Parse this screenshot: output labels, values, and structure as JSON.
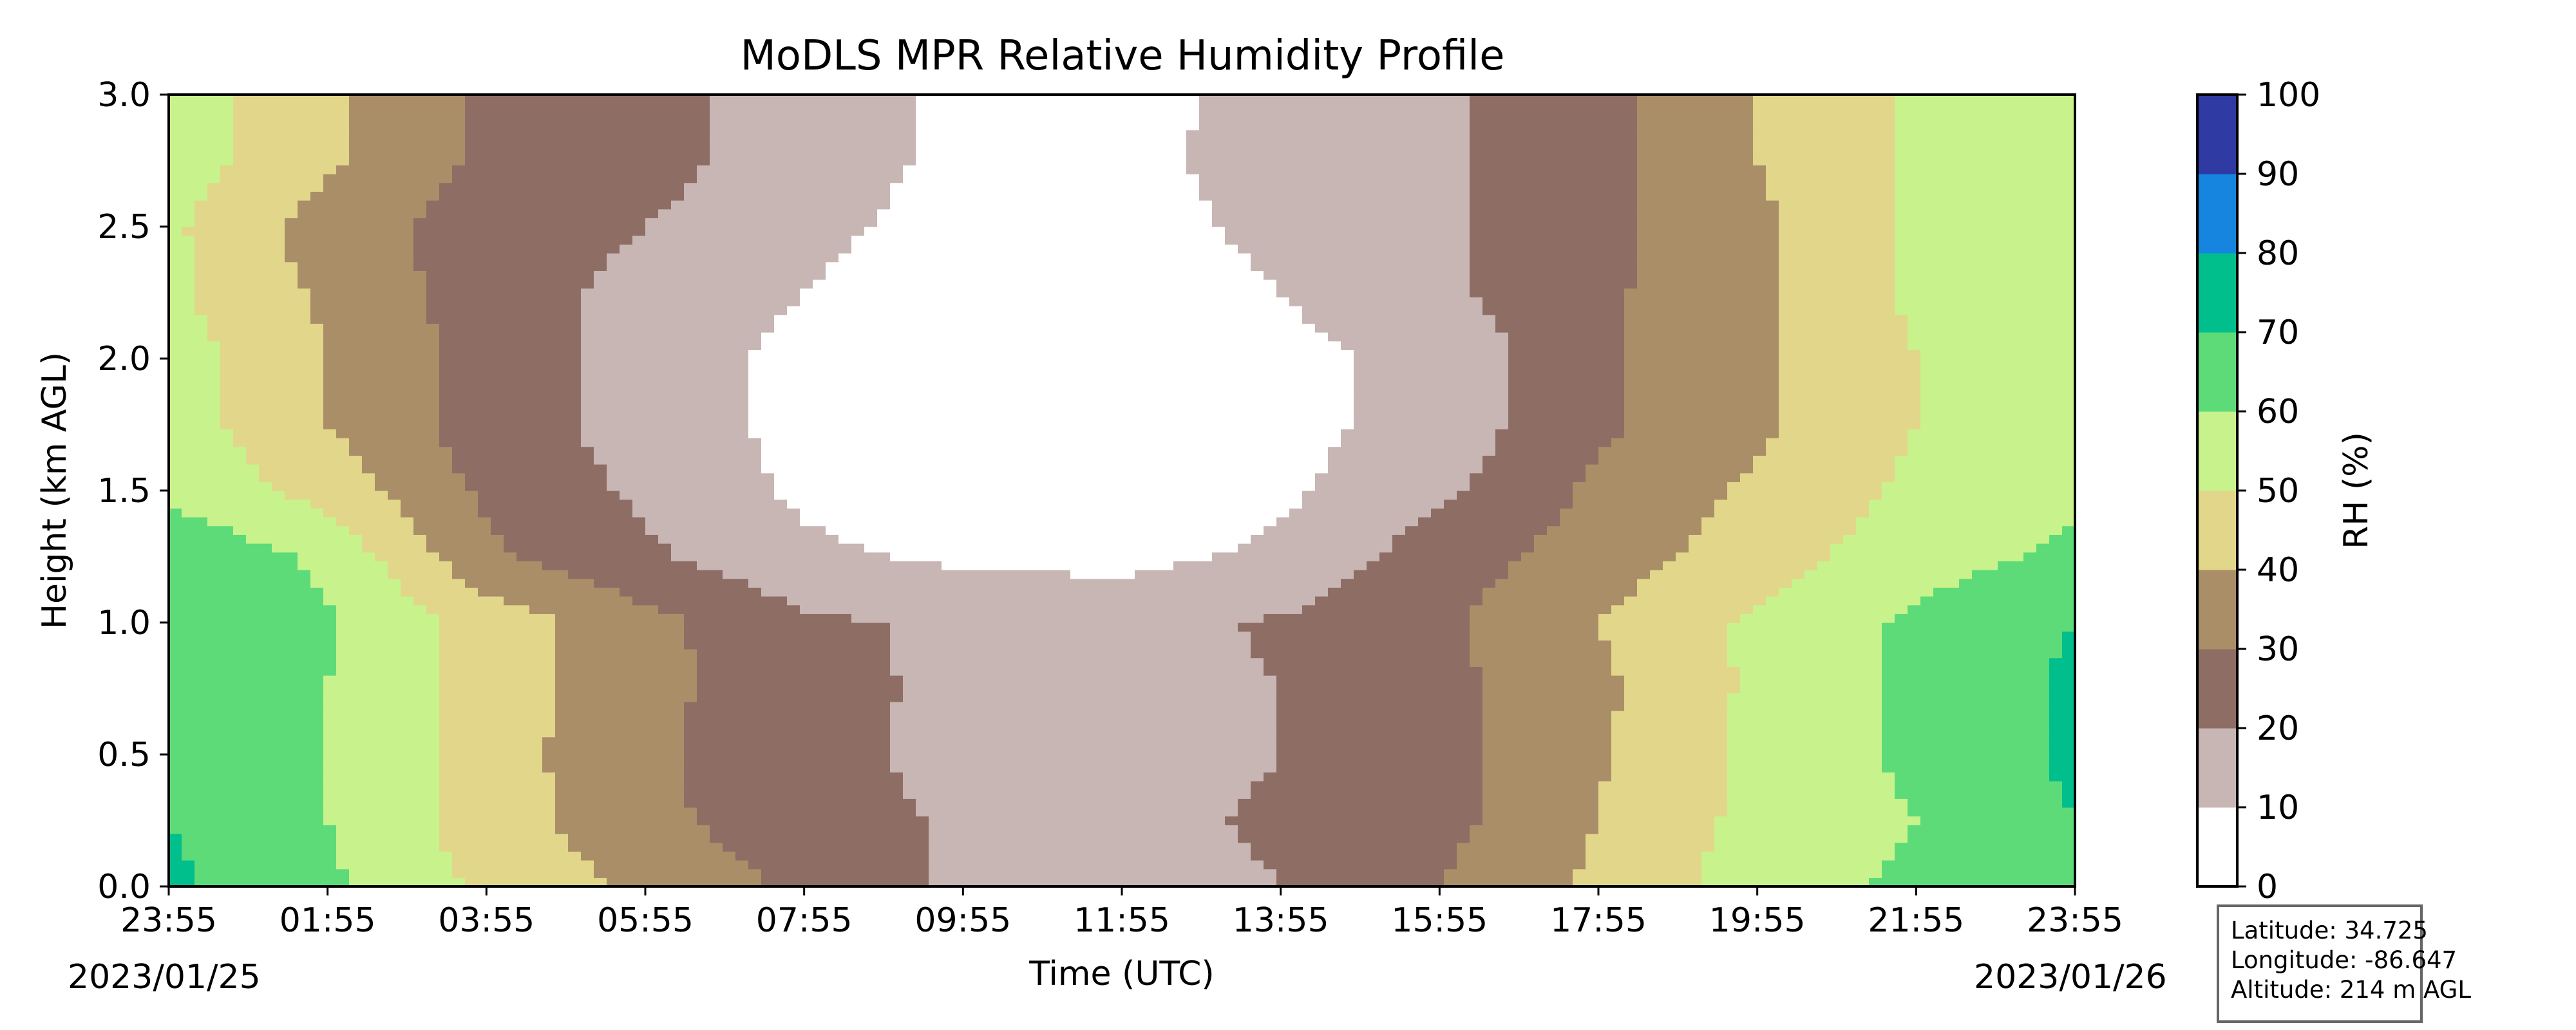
{
  "chart_data": {
    "type": "heatmap",
    "title": "MoDLS MPR Relative Humidity Profile",
    "xlabel": "Time (UTC)",
    "ylabel": "Height (km AGL)",
    "x_ticks": [
      "23:55",
      "01:55",
      "03:55",
      "05:55",
      "07:55",
      "09:55",
      "11:55",
      "13:55",
      "15:55",
      "17:55",
      "19:55",
      "21:55",
      "23:55"
    ],
    "start_date": "2023/01/25",
    "end_date": "2023/01/26",
    "ylim": [
      0.0,
      3.0
    ],
    "y_ticks": [
      "0.0",
      "0.5",
      "1.0",
      "1.5",
      "2.0",
      "2.5",
      "3.0"
    ],
    "colorbar": {
      "label": "RH (%)",
      "ticks": [
        "0",
        "10",
        "20",
        "30",
        "40",
        "50",
        "60",
        "70",
        "80",
        "90",
        "100"
      ],
      "levels": [
        0,
        10,
        20,
        30,
        40,
        50,
        60,
        70,
        80,
        90,
        100
      ],
      "colors": [
        "#ffffff",
        "#c8b6b4",
        "#8e6e64",
        "#a98e68",
        "#e1d68a",
        "#c8f28c",
        "#5cdb78",
        "#00bf8c",
        "#1585e0",
        "#2f3aa3"
      ]
    },
    "profile_heights_km": [
      0.0,
      0.25,
      0.5,
      0.75,
      1.0,
      1.25,
      1.5,
      1.75,
      2.0,
      2.25,
      2.5,
      2.75,
      3.0
    ],
    "profile_times": [
      "23:55",
      "01:55",
      "03:55",
      "05:55",
      "07:55",
      "09:55",
      "11:55",
      "13:55",
      "15:55",
      "17:55",
      "19:55",
      "21:55",
      "23:55"
    ],
    "rh_grid": [
      [
        72,
        62,
        48,
        38,
        28,
        18,
        17,
        20,
        30,
        42,
        55,
        62,
        70
      ],
      [
        70,
        60,
        45,
        33,
        23,
        19,
        18,
        21,
        27,
        40,
        53,
        60,
        70
      ],
      [
        70,
        60,
        45,
        32,
        22,
        18,
        17,
        20,
        27,
        39,
        53,
        62,
        72
      ],
      [
        70,
        60,
        45,
        33,
        23,
        18,
        17,
        20,
        27,
        38,
        52,
        62,
        72
      ],
      [
        70,
        61,
        46,
        33,
        22,
        18,
        17,
        21,
        28,
        40,
        52,
        62,
        70
      ],
      [
        68,
        58,
        32,
        22,
        12,
        8,
        7,
        12,
        25,
        35,
        45,
        56,
        62
      ],
      [
        58,
        46,
        28,
        18,
        8,
        5,
        5,
        8,
        18,
        32,
        42,
        52,
        58
      ],
      [
        55,
        40,
        25,
        16,
        7,
        4,
        4,
        7,
        14,
        28,
        38,
        50,
        58
      ],
      [
        55,
        40,
        26,
        16,
        7,
        4,
        4,
        7,
        13,
        28,
        38,
        50,
        58
      ],
      [
        52,
        38,
        25,
        17,
        10,
        5,
        5,
        10,
        18,
        28,
        38,
        52,
        58
      ],
      [
        52,
        35,
        25,
        20,
        12,
        7,
        7,
        12,
        18,
        27,
        38,
        52,
        58
      ],
      [
        55,
        42,
        28,
        24,
        14,
        8,
        8,
        13,
        18,
        27,
        40,
        52,
        58
      ],
      [
        55,
        42,
        28,
        24,
        14,
        8,
        8,
        12,
        18,
        27,
        40,
        52,
        58
      ]
    ]
  },
  "info": {
    "latitude": "Latitude: 34.725",
    "longitude": "Longitude: -86.647",
    "altitude": "Altitude: 214 m AGL"
  }
}
